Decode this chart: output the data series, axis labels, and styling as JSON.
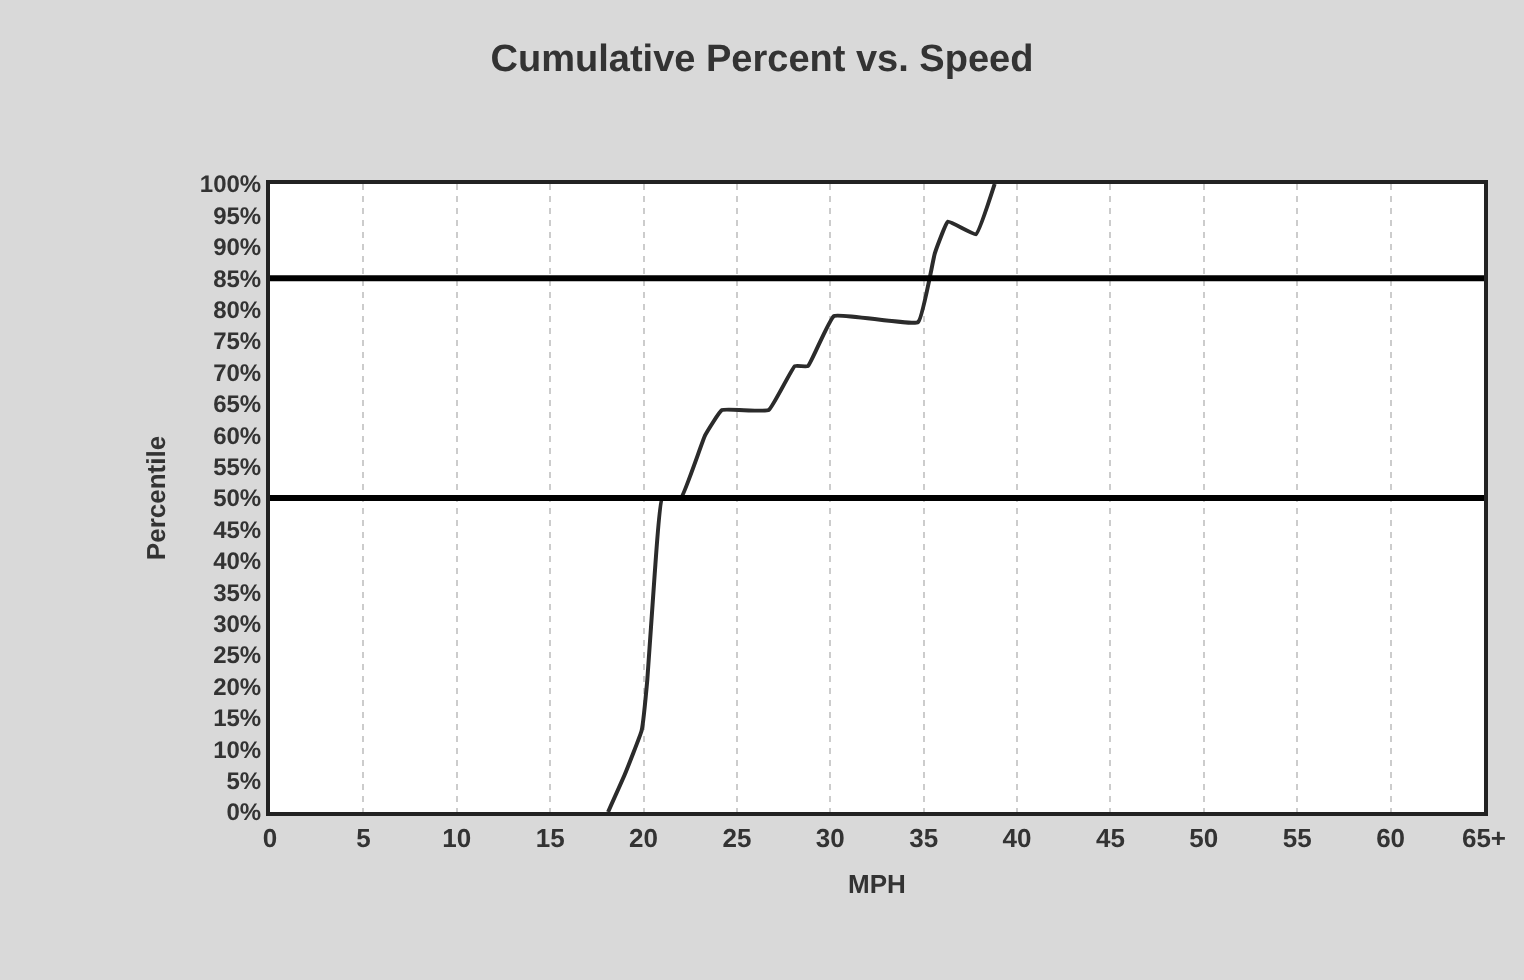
{
  "chart_data": {
    "type": "line",
    "title": "Cumulative Percent vs. Speed",
    "xlabel": "MPH",
    "ylabel": "Percentile",
    "series": [
      {
        "color": "#2b2b2b",
        "x": [
          18.1,
          19.0,
          19.9,
          20.2,
          20.6,
          21.0,
          22.0,
          23.3,
          24.2,
          26.7,
          28.1,
          28.8,
          30.2,
          34.7,
          35.6,
          36.3,
          37.8,
          38.8
        ],
        "values": [
          0,
          6,
          13,
          21,
          38,
          50,
          50,
          60,
          64,
          64,
          71,
          71,
          79,
          78,
          89,
          94,
          92,
          100
        ]
      }
    ],
    "xlim": [
      0,
      65
    ],
    "xticks": [
      0,
      5,
      10,
      15,
      20,
      25,
      30,
      35,
      40,
      45,
      50,
      55,
      60,
      {
        "value": 65,
        "label": "65+"
      }
    ],
    "ylim": [
      0,
      100
    ],
    "yticks": [
      {
        "value": 0,
        "label": "0%"
      },
      {
        "value": 5,
        "label": "5%"
      },
      {
        "value": 10,
        "label": "10%"
      },
      {
        "value": 15,
        "label": "15%"
      },
      {
        "value": 20,
        "label": "20%"
      },
      {
        "value": 25,
        "label": "25%"
      },
      {
        "value": 30,
        "label": "30%"
      },
      {
        "value": 35,
        "label": "35%"
      },
      {
        "value": 40,
        "label": "40%"
      },
      {
        "value": 45,
        "label": "45%"
      },
      {
        "value": 50,
        "label": "50%"
      },
      {
        "value": 55,
        "label": "55%"
      },
      {
        "value": 60,
        "label": "60%"
      },
      {
        "value": 65,
        "label": "65%"
      },
      {
        "value": 70,
        "label": "70%"
      },
      {
        "value": 75,
        "label": "75%"
      },
      {
        "value": 80,
        "label": "80%"
      },
      {
        "value": 85,
        "label": "85%"
      },
      {
        "value": 90,
        "label": "90%"
      },
      {
        "value": 95,
        "label": "95%"
      },
      {
        "value": 100,
        "label": "100%"
      }
    ],
    "ref_lines": [
      {
        "axis": "y",
        "value": 85,
        "color": "#000000"
      },
      {
        "axis": "y",
        "value": 50,
        "color": "#000000"
      }
    ],
    "grid": "x",
    "marker": "none",
    "line_style": "solid",
    "legend": false
  }
}
